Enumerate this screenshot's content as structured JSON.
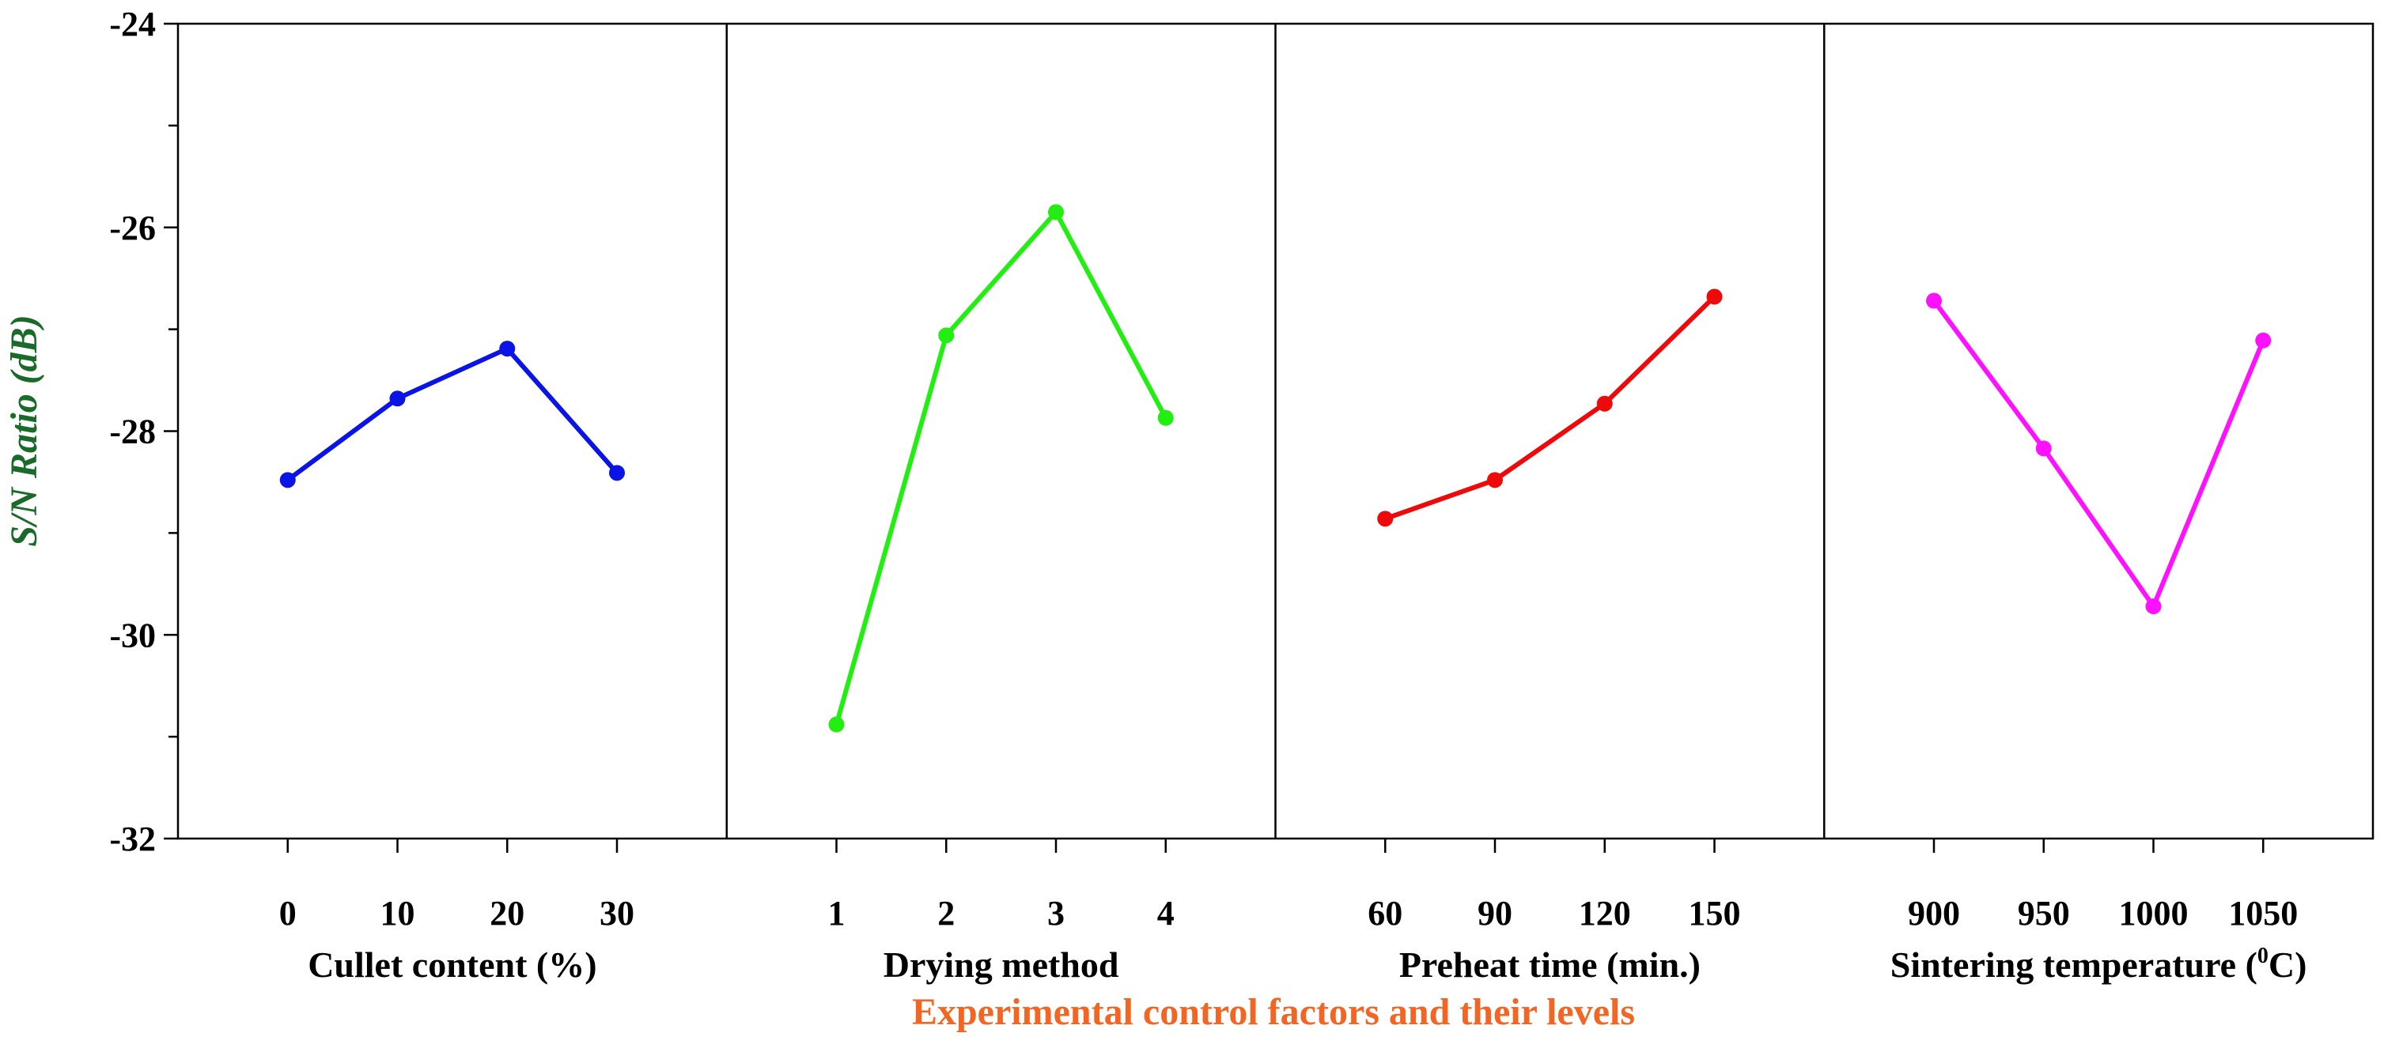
{
  "chart_data": {
    "type": "line",
    "title": "",
    "ylabel": "S/N Ratio (dB)",
    "xlabel": "Experimental control factors and their levels",
    "ylim": [
      -32,
      -24
    ],
    "yticks": [
      "-24",
      "-26",
      "-28",
      "-30",
      "-32"
    ],
    "ylabel_color": "#1a6b2a",
    "xlabel_color": "#f26522",
    "grid": false,
    "panels": [
      {
        "name": "Cullet content (%)",
        "label_main": "Cullet content (%)",
        "categories": [
          "0",
          "10",
          "20",
          "30"
        ],
        "values": [
          -28.48,
          -27.68,
          -27.19,
          -28.41
        ],
        "color": "#0a14e6"
      },
      {
        "name": "Drying method",
        "label_main": "Drying method",
        "categories": [
          "1",
          "2",
          "3",
          "4"
        ],
        "values": [
          -30.88,
          -27.06,
          -25.85,
          -27.87
        ],
        "color": "#22ee11"
      },
      {
        "name": "Preheat time (min.)",
        "label_main": "Preheat time (min.)",
        "categories": [
          "60",
          "90",
          "120",
          "150"
        ],
        "values": [
          -28.86,
          -28.48,
          -27.73,
          -26.68
        ],
        "color": "#ee0a0a"
      },
      {
        "name": "Sintering temperature (0C)",
        "label_main": "Sintering temperature (",
        "label_sup": "0",
        "label_end": "C)",
        "categories": [
          "900",
          "950",
          "1000",
          "1050"
        ],
        "values": [
          -26.72,
          -28.17,
          -29.72,
          -27.11
        ],
        "color": "#ff11ff"
      }
    ]
  }
}
